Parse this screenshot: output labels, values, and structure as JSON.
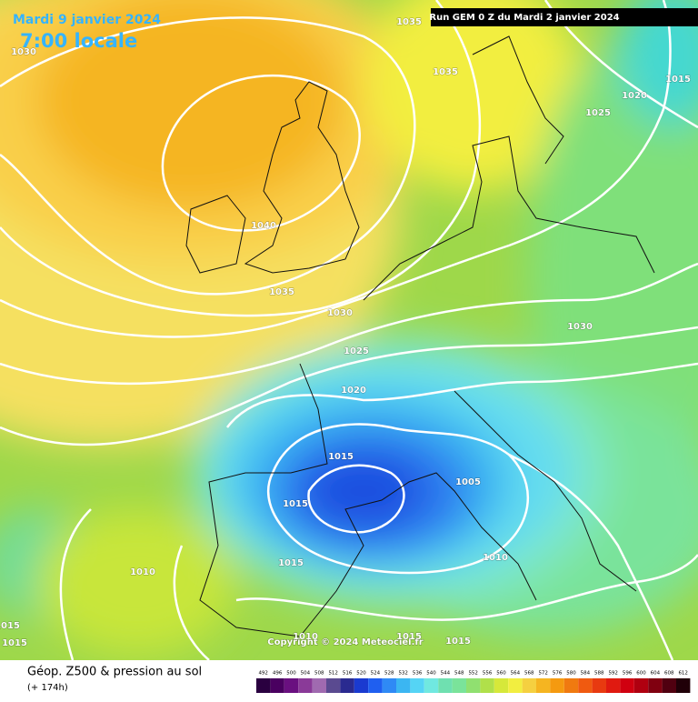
{
  "header": {
    "date": "Mardi 9 janvier 2024",
    "time": "7:00 locale",
    "run": "Run GEM 0 Z du Mardi 2 janvier 2024"
  },
  "isobar_labels": [
    1030,
    1035,
    1035,
    1020,
    1015,
    1025,
    1040,
    1035,
    1030,
    1030,
    1025,
    1020,
    1015,
    1005,
    1015,
    1015,
    1010,
    1010,
    1015,
    1015,
    1010,
    1015,
    1015
  ],
  "copyright": "Copyright © 2024 Meteociel.fr",
  "legend": {
    "title": "Géop. Z500 & pression au sol",
    "lead": "(+ 174h)",
    "scale": [
      492,
      496,
      500,
      504,
      508,
      512,
      516,
      520,
      524,
      528,
      532,
      536,
      540,
      544,
      548,
      552,
      556,
      560,
      564,
      568,
      572,
      576,
      580,
      584,
      588,
      592,
      596,
      600,
      604,
      608,
      612
    ],
    "colors": [
      "#2a0040",
      "#4a0060",
      "#6a1080",
      "#8a3a98",
      "#a06ab0",
      "#5a4a90",
      "#2a2a90",
      "#1a3ad0",
      "#1f5ff0",
      "#2f8af5",
      "#3bb6f2",
      "#55d4f5",
      "#70e8e0",
      "#6fe0b0",
      "#7ae39a",
      "#90e070",
      "#b0e04a",
      "#d6e83a",
      "#f2ee40",
      "#f5d040",
      "#f5b521",
      "#f59a10",
      "#f07a10",
      "#f05a10",
      "#e83a10",
      "#e01a10",
      "#d00010",
      "#b00010",
      "#800010",
      "#500010",
      "#200008"
    ]
  }
}
